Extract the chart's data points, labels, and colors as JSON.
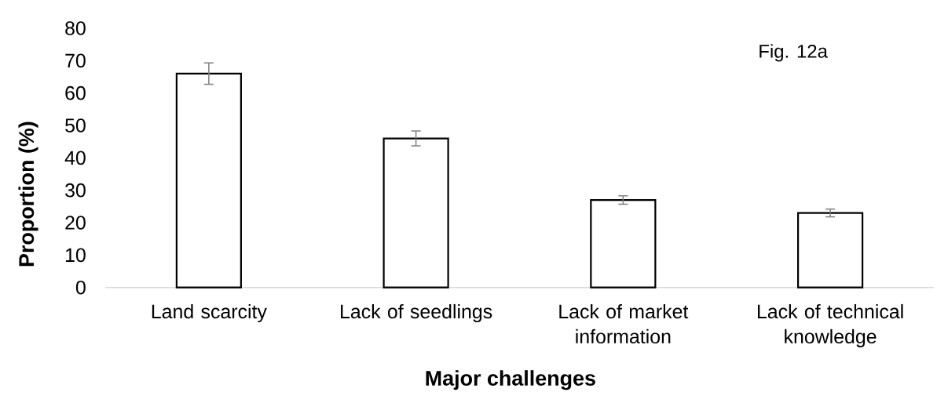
{
  "chart_data": {
    "type": "bar",
    "xlabel": "Major challenges",
    "ylabel": "Proportion (%)",
    "annotations": [
      "Fig. 12a"
    ],
    "categories": [
      "Land scarcity",
      "Lack of seedlings",
      "Lack of market information",
      "Lack of technical knowledge"
    ],
    "values": [
      66,
      46,
      27,
      23
    ],
    "errors": [
      3.3,
      2.3,
      1.3,
      1.2
    ],
    "color": "#000000",
    "ylim": [
      0,
      80
    ],
    "yticks": [
      0,
      10,
      20,
      30,
      40,
      50,
      60,
      70,
      80
    ]
  }
}
